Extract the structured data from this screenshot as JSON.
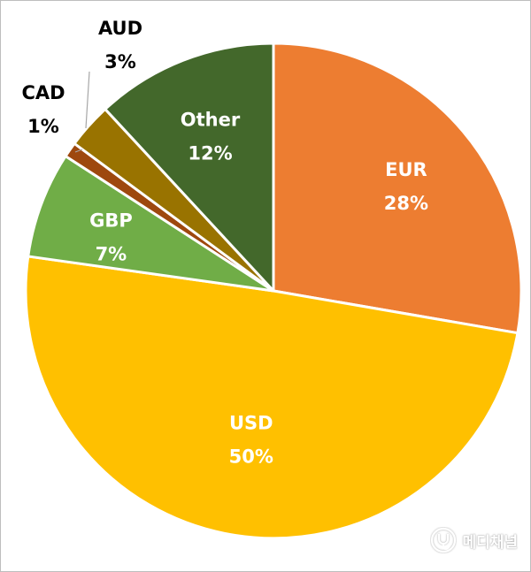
{
  "chart_data": {
    "type": "pie",
    "title": "",
    "slices": [
      {
        "name": "EUR",
        "value": 28,
        "label": "28%",
        "color": "#ED7D31",
        "label_color": "#ffffff",
        "label_placement": "inside"
      },
      {
        "name": "USD",
        "value": 50,
        "label": "50%",
        "color": "#FFC000",
        "label_color": "#ffffff",
        "label_placement": "inside"
      },
      {
        "name": "GBP",
        "value": 7,
        "label": "7%",
        "color": "#70AD47",
        "label_color": "#ffffff",
        "label_placement": "inside"
      },
      {
        "name": "CAD",
        "value": 1,
        "label": "1%",
        "color": "#9E480E",
        "label_color": "#000000",
        "label_placement": "outside"
      },
      {
        "name": "AUD",
        "value": 3,
        "label": "3%",
        "color": "#997300",
        "label_color": "#000000",
        "label_placement": "outside"
      },
      {
        "name": "Other",
        "value": 12,
        "label": "12%",
        "color": "#43682B",
        "label_color": "#ffffff",
        "label_placement": "inside"
      }
    ],
    "start": "12 o'clock",
    "direction": "clockwise",
    "legend": "none"
  },
  "watermark": {
    "text": "메디채널",
    "icon": "stethoscope-icon"
  }
}
